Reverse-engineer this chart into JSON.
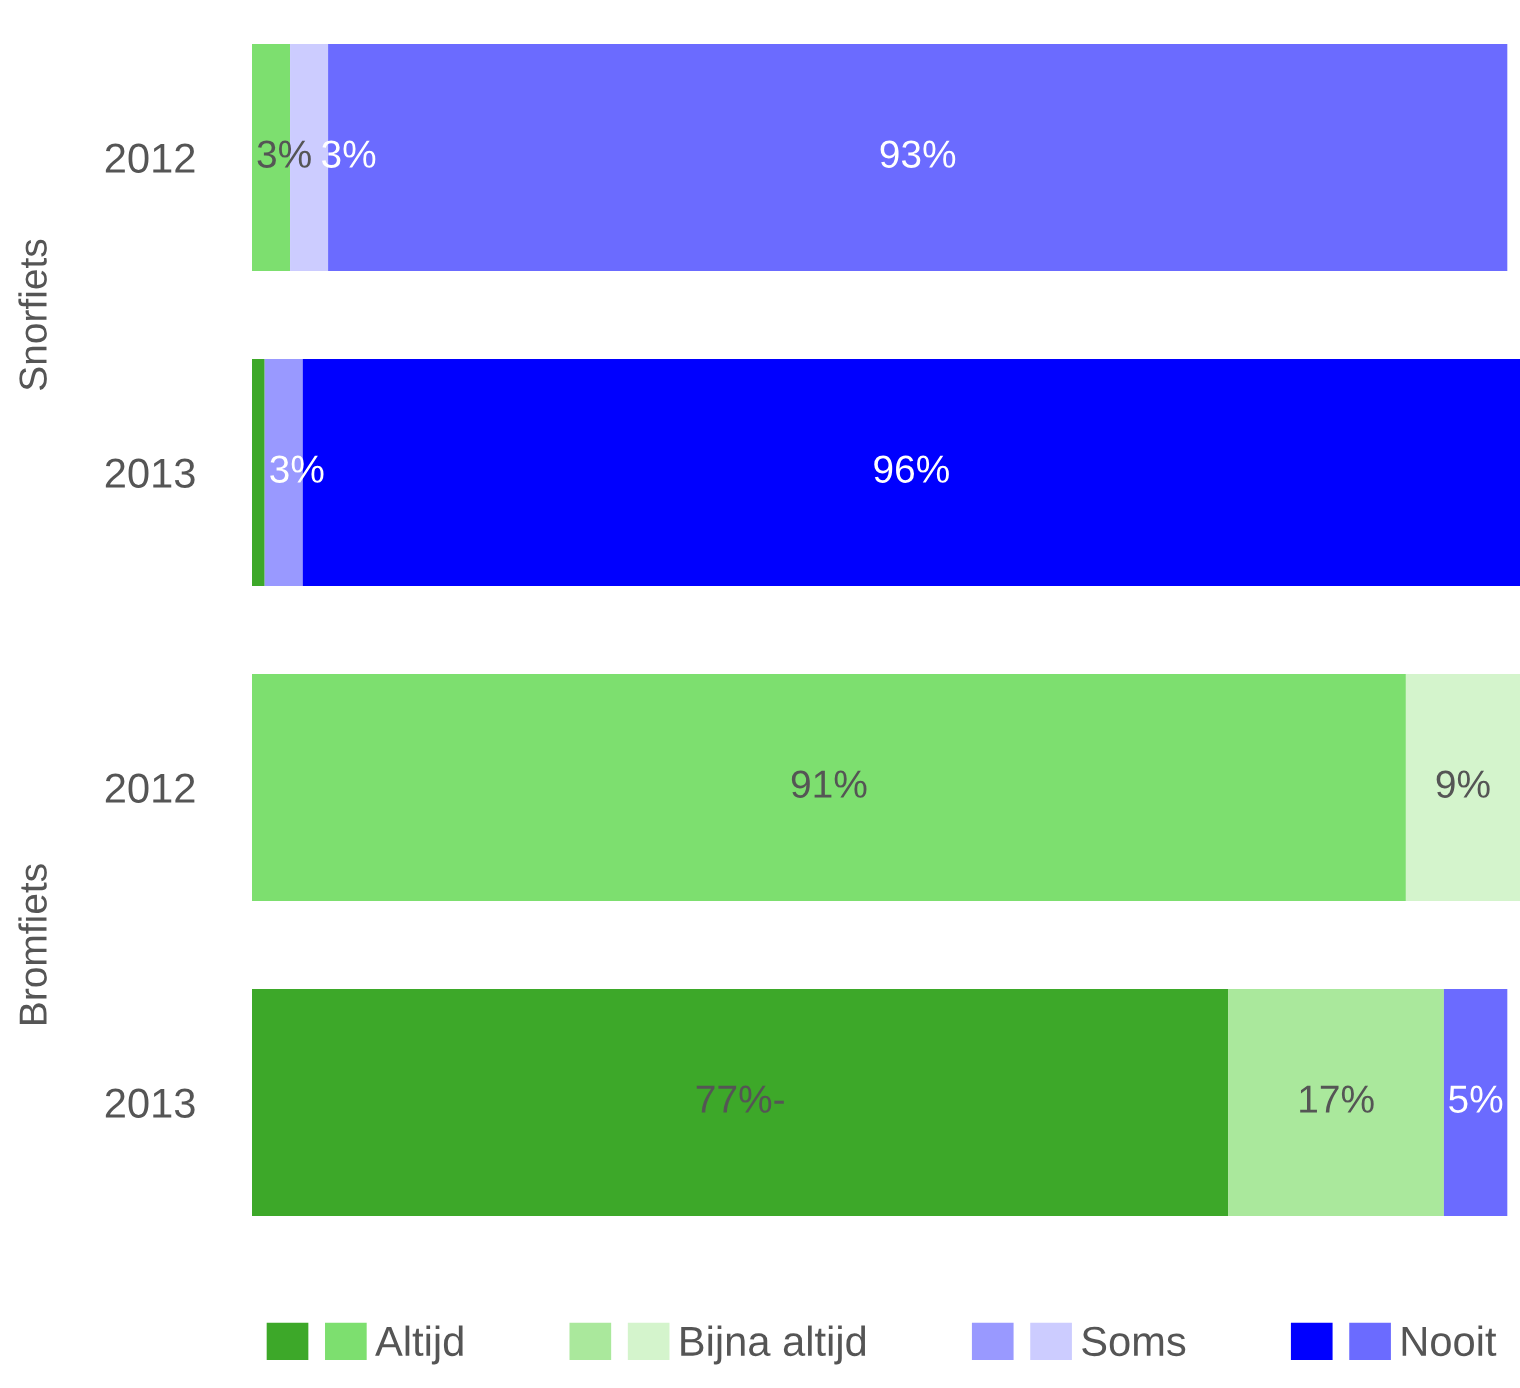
{
  "chart_data": {
    "type": "bar",
    "orientation": "horizontal",
    "stacked": true,
    "categories": [
      "2012",
      "2013",
      "2012",
      "2013"
    ],
    "annotations": [
      "Snorfiets",
      "Bromfiets"
    ],
    "xlim": [
      0,
      100
    ],
    "tick_labels": "y",
    "grid": false,
    "legend": "bottom",
    "series": [
      {
        "name": "Altijd",
        "values": [
          3,
          1,
          91,
          77
        ],
        "colors": [
          "#7ddf6f",
          "#3da829",
          "#7ddf6f",
          "#3da829"
        ],
        "value_labels": [
          "3%",
          null,
          "91%",
          "77%-"
        ]
      },
      {
        "name": "Bijna altijd",
        "values": [
          0,
          0,
          9,
          17
        ],
        "colors": [
          "#d4f4cc",
          "#aae89c",
          "#d4f4cc",
          "#aae89c"
        ],
        "value_labels": [
          null,
          null,
          "9%",
          "17%"
        ]
      },
      {
        "name": "Soms",
        "values": [
          3,
          3,
          0,
          0
        ],
        "colors": [
          "#ccccff",
          "#9999ff",
          "#ccccff",
          "#9999ff"
        ],
        "value_labels": [
          "3%",
          "3%",
          null,
          null
        ]
      },
      {
        "name": "Nooit",
        "values": [
          93,
          96,
          0,
          5
        ],
        "colors": [
          "#6b6bff",
          "#0000ff",
          "#6b6bff",
          "#6b6bff"
        ],
        "value_labels": [
          "93%",
          "96%",
          null,
          "5%"
        ]
      }
    ]
  }
}
